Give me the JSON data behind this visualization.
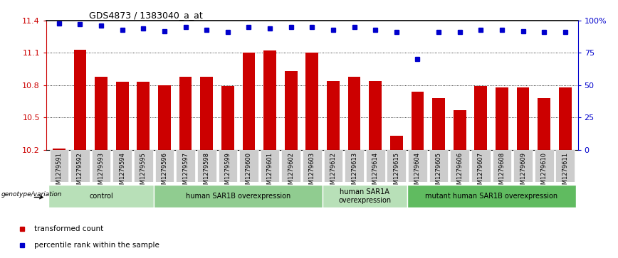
{
  "title": "GDS4873 / 1383040_a_at",
  "samples": [
    "GSM1279591",
    "GSM1279592",
    "GSM1279593",
    "GSM1279594",
    "GSM1279595",
    "GSM1279596",
    "GSM1279597",
    "GSM1279598",
    "GSM1279599",
    "GSM1279600",
    "GSM1279601",
    "GSM1279602",
    "GSM1279603",
    "GSM1279612",
    "GSM1279613",
    "GSM1279614",
    "GSM1279615",
    "GSM1279604",
    "GSM1279605",
    "GSM1279606",
    "GSM1279607",
    "GSM1279608",
    "GSM1279609",
    "GSM1279610",
    "GSM1279611"
  ],
  "bar_values": [
    10.21,
    11.13,
    10.88,
    10.83,
    10.83,
    10.8,
    10.88,
    10.88,
    10.79,
    11.1,
    11.12,
    10.93,
    11.1,
    10.84,
    10.88,
    10.84,
    10.33,
    10.74,
    10.68,
    10.57,
    10.79,
    10.78,
    10.78,
    10.68,
    10.78
  ],
  "percentile_values": [
    98,
    97,
    96,
    93,
    94,
    92,
    95,
    93,
    91,
    95,
    94,
    95,
    95,
    93,
    95,
    93,
    91,
    70,
    91,
    91,
    93,
    93,
    92,
    91,
    91
  ],
  "bar_color": "#CC0000",
  "percentile_color": "#0000CC",
  "ylim_left": [
    10.2,
    11.4
  ],
  "ylim_right": [
    0,
    100
  ],
  "yticks_left": [
    10.2,
    10.5,
    10.8,
    11.1,
    11.4
  ],
  "ytick_labels_left": [
    "10.2",
    "10.5",
    "10.8",
    "11.1",
    "11.4"
  ],
  "yticks_right": [
    0,
    25,
    50,
    75,
    100
  ],
  "ytick_labels_right": [
    "0",
    "25",
    "50",
    "75",
    "100%"
  ],
  "groups": [
    {
      "label": "control",
      "start": 0,
      "end": 5,
      "color": "#b8e0b8"
    },
    {
      "label": "human SAR1B overexpression",
      "start": 5,
      "end": 13,
      "color": "#90cc90"
    },
    {
      "label": "human SAR1A\noverexpression",
      "start": 13,
      "end": 17,
      "color": "#b8e0b8"
    },
    {
      "label": "mutant human SAR1B overexpression",
      "start": 17,
      "end": 25,
      "color": "#60bb60"
    }
  ],
  "genotype_label": "genotype/variation",
  "legend_items": [
    {
      "color": "#CC0000",
      "label": "transformed count"
    },
    {
      "color": "#0000CC",
      "label": "percentile rank within the sample"
    }
  ],
  "tick_bg_color": "#cccccc",
  "bar_width": 0.6
}
